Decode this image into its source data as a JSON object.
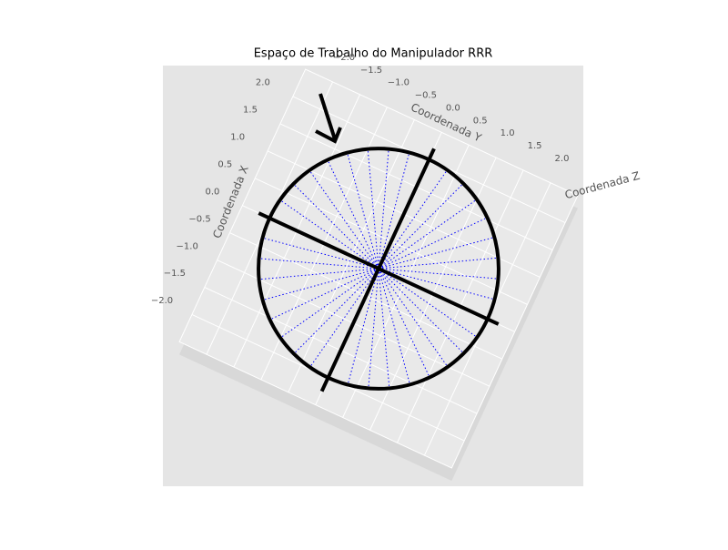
{
  "chart_data": {
    "type": "polar-workspace-3d",
    "title": "Espaço de Trabalho do Manipulador RRR",
    "xlabel": "Coordenada X",
    "ylabel": "Coordenada Y",
    "zlabel": "Coordenada Z",
    "xlim": [
      -2.5,
      2.5
    ],
    "ylim": [
      -2.5,
      2.5
    ],
    "xticks": [
      {
        "value": -2.0,
        "label": "−2.0"
      },
      {
        "value": -1.5,
        "label": "−1.5"
      },
      {
        "value": -1.0,
        "label": "−1.0"
      },
      {
        "value": -0.5,
        "label": "−0.5"
      },
      {
        "value": 0.0,
        "label": "0.0"
      },
      {
        "value": 0.5,
        "label": "0.5"
      },
      {
        "value": 1.0,
        "label": "1.0"
      },
      {
        "value": 1.5,
        "label": "1.5"
      },
      {
        "value": 2.0,
        "label": "2.0"
      }
    ],
    "yticks": [
      {
        "value": -2.0,
        "label": "−2.0"
      },
      {
        "value": -1.5,
        "label": "−1.5"
      },
      {
        "value": -1.0,
        "label": "−1.0"
      },
      {
        "value": -0.5,
        "label": "−0.5"
      },
      {
        "value": 0.0,
        "label": "0.0"
      },
      {
        "value": 0.5,
        "label": "0.5"
      },
      {
        "value": 1.0,
        "label": "1.0"
      },
      {
        "value": 1.5,
        "label": "1.5"
      },
      {
        "value": 2.0,
        "label": "2.0"
      }
    ],
    "grid": true,
    "workspace": {
      "color": "#0000ff",
      "radius": 2.0,
      "ray_angles": [
        0,
        10,
        20,
        30,
        40,
        50,
        60,
        70,
        80,
        90,
        100,
        110,
        120,
        130,
        140,
        150,
        160,
        170,
        180,
        190,
        200,
        210,
        220,
        230,
        240,
        250,
        260,
        270,
        280,
        290,
        300,
        310,
        320,
        330,
        340,
        350
      ]
    },
    "boundary": {
      "color": "#000000",
      "radius": 2.0
    },
    "links": {
      "color": "#000000",
      "segments": [
        [
          [
            0,
            -2.2
          ],
          [
            0,
            2.2
          ]
        ],
        [
          [
            2.2,
            0
          ],
          [
            -2.25,
            0
          ]
        ]
      ]
    }
  }
}
